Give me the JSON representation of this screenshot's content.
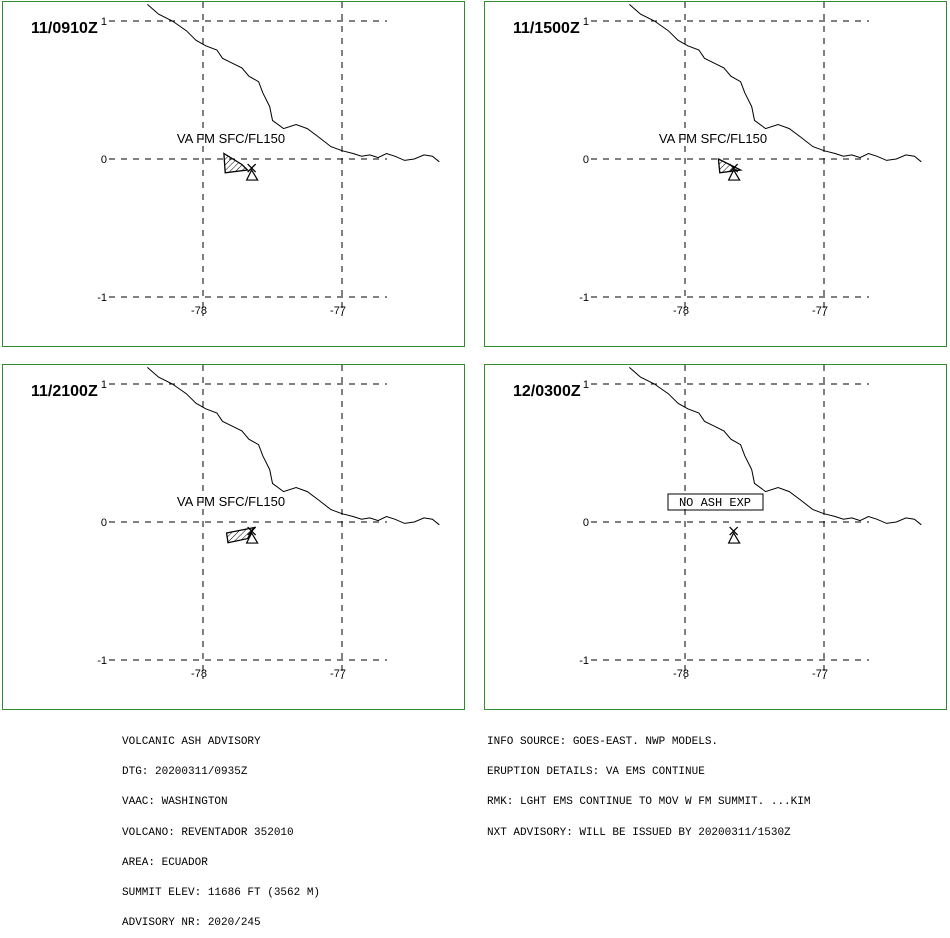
{
  "panels": [
    {
      "time": "11/0910Z",
      "label": "VA FM SFC/FL150",
      "label_box": false,
      "polygon": [
        [
          -77.85,
          0.04
        ],
        [
          -77.72,
          -0.04
        ],
        [
          -77.68,
          -0.08
        ],
        [
          -77.84,
          -0.1
        ]
      ],
      "hatched": true
    },
    {
      "time": "11/1500Z",
      "label": "VA FM SFC/FL150",
      "label_box": false,
      "polygon": [
        [
          -77.76,
          0.0
        ],
        [
          -77.6,
          -0.08
        ],
        [
          -77.75,
          -0.1
        ]
      ],
      "hatched": true
    },
    {
      "time": "11/2100Z",
      "label": "VA FM SFC/FL150",
      "label_box": false,
      "polygon": [
        [
          -77.83,
          -0.08
        ],
        [
          -77.63,
          -0.04
        ],
        [
          -77.68,
          -0.12
        ],
        [
          -77.82,
          -0.15
        ]
      ],
      "hatched": true
    },
    {
      "time": "12/0300Z",
      "label": "NO ASH EXP",
      "label_box": true,
      "polygon": [],
      "hatched": false
    }
  ],
  "map": {
    "lon_ticks": [
      "-78",
      "-77"
    ],
    "lat_ticks": [
      "1",
      "0",
      "-1"
    ],
    "volcano": {
      "lon": -77.65,
      "lat": -0.08
    },
    "coastline": [
      [
        -78.4,
        1.12
      ],
      [
        -78.32,
        1.05
      ],
      [
        -78.22,
        1.0
      ],
      [
        -78.12,
        0.93
      ],
      [
        -78.05,
        0.86
      ],
      [
        -77.98,
        0.82
      ],
      [
        -77.9,
        0.79
      ],
      [
        -77.86,
        0.73
      ],
      [
        -77.8,
        0.7
      ],
      [
        -77.72,
        0.66
      ],
      [
        -77.67,
        0.6
      ],
      [
        -77.6,
        0.56
      ],
      [
        -77.57,
        0.48
      ],
      [
        -77.52,
        0.38
      ],
      [
        -77.5,
        0.28
      ],
      [
        -77.42,
        0.22
      ],
      [
        -77.33,
        0.25
      ],
      [
        -77.25,
        0.22
      ],
      [
        -77.17,
        0.16
      ],
      [
        -77.08,
        0.09
      ],
      [
        -77.0,
        0.06
      ],
      [
        -76.92,
        0.04
      ],
      [
        -76.86,
        0.02
      ],
      [
        -76.8,
        0.03
      ],
      [
        -76.74,
        0.01
      ],
      [
        -76.68,
        0.04
      ],
      [
        -76.62,
        0.02
      ],
      [
        -76.55,
        -0.01
      ],
      [
        -76.48,
        0.0
      ],
      [
        -76.41,
        0.03
      ],
      [
        -76.35,
        0.02
      ],
      [
        -76.3,
        -0.02
      ]
    ]
  },
  "colors": {
    "panel_border": "#2e8b2e",
    "lines": "#000000"
  },
  "advisory_left": [
    "VOLCANIC ASH ADVISORY",
    "DTG: 20200311/0935Z",
    "VAAC: WASHINGTON",
    "VOLCANO: REVENTADOR 352010",
    "AREA: ECUADOR",
    "SUMMIT ELEV: 11686 FT (3562 M)",
    "ADVISORY NR: 2020/245"
  ],
  "advisory_right": [
    "INFO SOURCE: GOES-EAST. NWP MODELS.",
    "ERUPTION DETAILS: VA EMS CONTINUE",
    "RMK: LGHT EMS CONTINUE TO MOV W FM SUMMIT. ...KIM",
    "NXT ADVISORY: WILL BE ISSUED BY 20200311/1530Z"
  ]
}
